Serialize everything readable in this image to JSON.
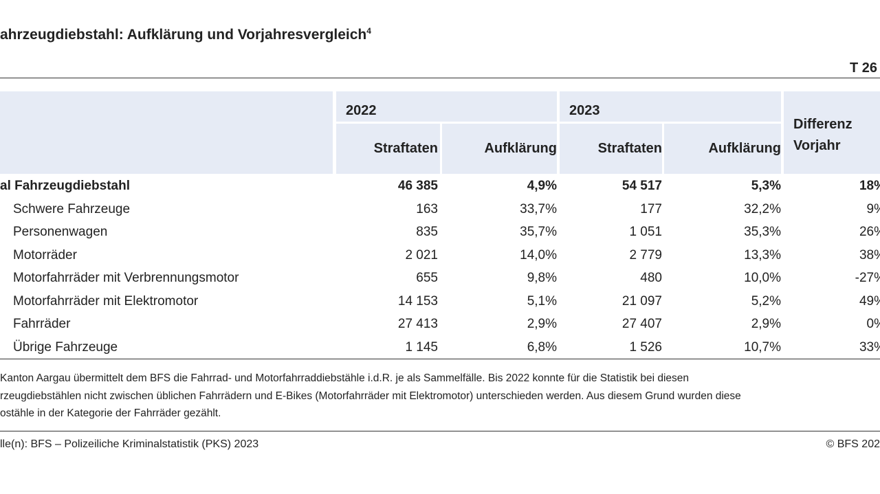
{
  "header": {
    "title": "ahrzeugdiebstahl: Aufklärung und Vorjahresvergleich",
    "footnote_mark": "4",
    "table_id": "T 26"
  },
  "table": {
    "groups": [
      "2022",
      "2023",
      "Differenz Vorjahr"
    ],
    "columns": [
      "Straftaten",
      "Aufklärung",
      "Straftaten",
      "Aufklärung"
    ],
    "rows": [
      [
        "al Fahrzeugdiebstahl",
        "46 385",
        "4,9%",
        "54 517",
        "5,3%",
        "18%"
      ],
      [
        "Schwere Fahrzeuge",
        "163",
        "33,7%",
        "177",
        "32,2%",
        "9%"
      ],
      [
        "Personenwagen",
        "835",
        "35,7%",
        "1 051",
        "35,3%",
        "26%"
      ],
      [
        "Motorräder",
        "2 021",
        "14,0%",
        "2 779",
        "13,3%",
        "38%"
      ],
      [
        "Motorfahrräder mit Verbrennungsmotor",
        "655",
        "9,8%",
        "480",
        "10,0%",
        "-27%"
      ],
      [
        "Motorfahrräder mit Elektromotor",
        "14 153",
        "5,1%",
        "21 097",
        "5,2%",
        "49%"
      ],
      [
        "Fahrräder",
        "27 413",
        "2,9%",
        "27 407",
        "2,9%",
        "0%"
      ],
      [
        "Übrige Fahrzeuge",
        "1 145",
        "6,8%",
        "1 526",
        "10,7%",
        "33%"
      ]
    ]
  },
  "footnote": {
    "lines": [
      "Kanton Aargau übermittelt dem BFS die Fahrrad- und Motorfahrraddiebstähle i.d.R. je als Sammelfälle. Bis 2022 konnte für die Statistik bei diesen",
      "rzeugdiebstählen nicht zwischen üblichen Fahrrädern und E-Bikes (Motorfahrräder mit Elektromotor) unterschieden werden. Aus diesem Grund wurden diese",
      "ostähle in der Kategorie der Fahrräder gezählt."
    ]
  },
  "source": {
    "text": "lle(n): BFS – Polizeiliche Kriminalstatistik (PKS) 2023",
    "copyright": "© BFS 202"
  }
}
